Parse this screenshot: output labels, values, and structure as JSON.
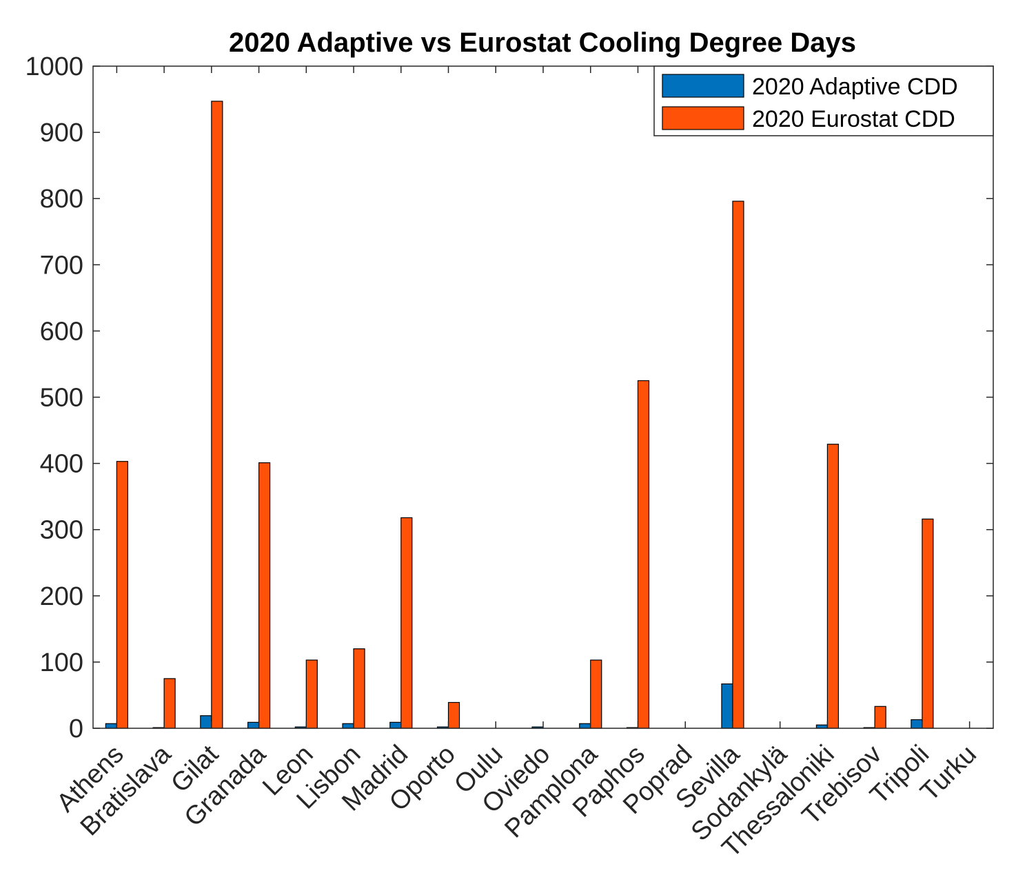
{
  "colors": {
    "adaptive": "#0072BD",
    "eurostat": "#FF5208",
    "axis": "#262626",
    "bar_edge": "#000000"
  },
  "chart_data": {
    "type": "bar",
    "title": "2020 Adaptive vs Eurostat Cooling Degree Days",
    "xlabel": "",
    "ylabel": "",
    "ylim": [
      0,
      1000
    ],
    "yticks": [
      0,
      100,
      200,
      300,
      400,
      500,
      600,
      700,
      800,
      900,
      1000
    ],
    "grid": false,
    "legend_position": "top-right",
    "categories": [
      "Athens",
      "Bratislava",
      "Gilat",
      "Granada",
      "Leon",
      "Lisbon",
      "Madrid",
      "Oporto",
      "Oulu",
      "Oviedo",
      "Pamplona",
      "Paphos",
      "Poprad",
      "Sevilla",
      "Sodankylä",
      "Thessaloniki",
      "Trebisov",
      "Tripoli",
      "Turku"
    ],
    "series": [
      {
        "name": "2020 Adaptive CDD",
        "color": "#0072BD",
        "values": [
          7,
          1,
          19,
          9,
          2,
          7,
          9,
          2,
          0,
          2,
          7,
          1,
          0,
          67,
          0,
          5,
          1,
          13,
          0
        ]
      },
      {
        "name": "2020 Eurostat CDD",
        "color": "#FF5208",
        "values": [
          403,
          75,
          947,
          401,
          103,
          120,
          318,
          39,
          0,
          0,
          103,
          525,
          0,
          796,
          0,
          429,
          33,
          316,
          0
        ]
      }
    ]
  }
}
